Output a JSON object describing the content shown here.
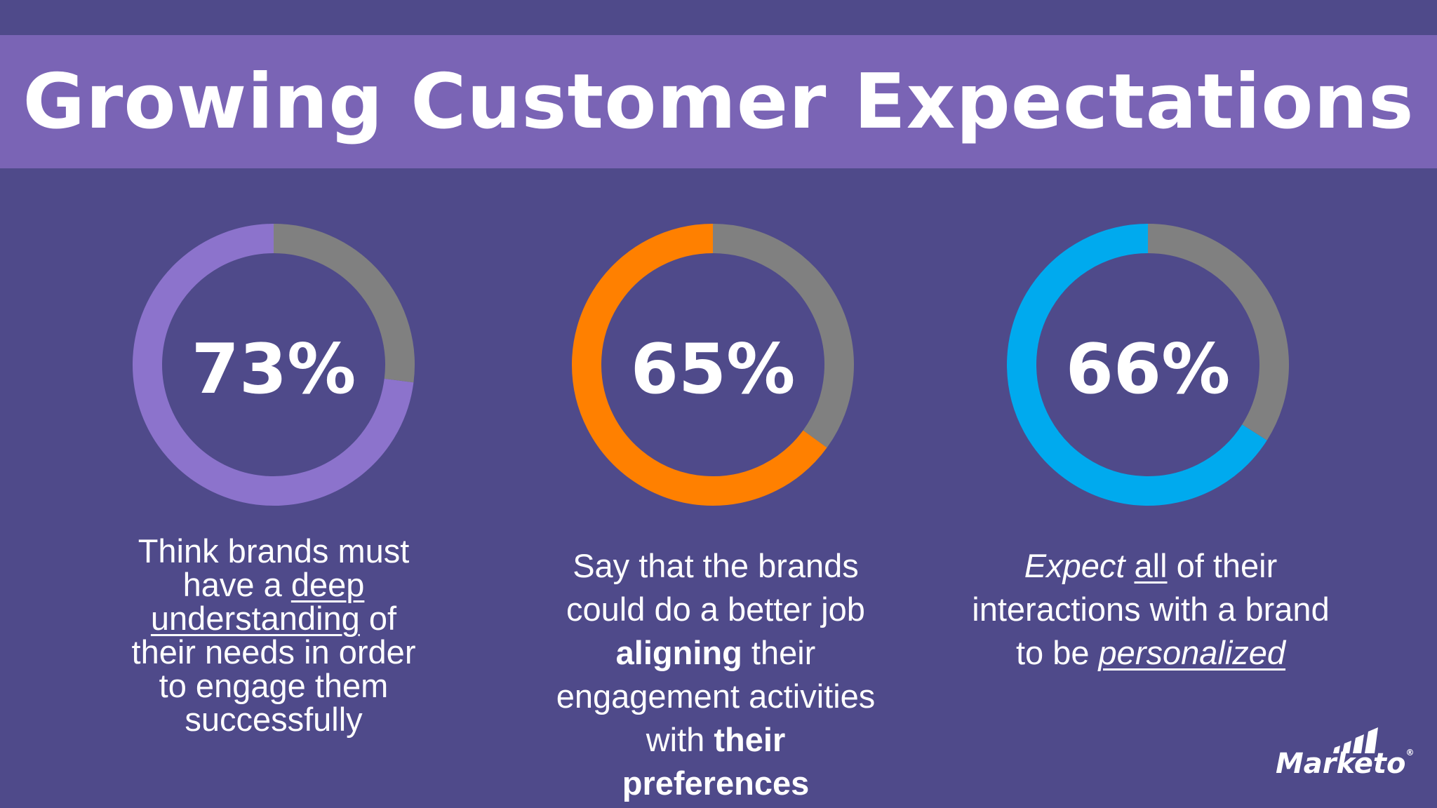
{
  "header": {
    "title": "Growing Customer Expectations"
  },
  "chart_data": [
    {
      "type": "pie",
      "style": "donut",
      "value_percent": 73,
      "center_label": "73%",
      "colors": {
        "filled": "#8c73cc",
        "remainder": "#808080"
      },
      "caption": [
        "Think brands must",
        "have a",
        "deep",
        "understanding",
        "of",
        "their needs in order",
        "to engage them",
        "successfully"
      ]
    },
    {
      "type": "pie",
      "style": "donut",
      "value_percent": 65,
      "center_label": "65%",
      "colors": {
        "filled": "#ff8000",
        "remainder": "#808080"
      },
      "caption": [
        "Say that the brands",
        "could do a better job",
        "aligning",
        "their",
        "engagement activities",
        "with",
        "their",
        "preferences"
      ]
    },
    {
      "type": "pie",
      "style": "donut",
      "value_percent": 66,
      "center_label": "66%",
      "colors": {
        "filled": "#00aaee",
        "remainder": "#808080"
      },
      "caption": [
        "Expect",
        "all",
        "of their",
        "interactions with a brand",
        "to be",
        "personalized"
      ]
    }
  ],
  "logo": {
    "text": "Marketo",
    "icon": "marketo-bars-icon"
  }
}
